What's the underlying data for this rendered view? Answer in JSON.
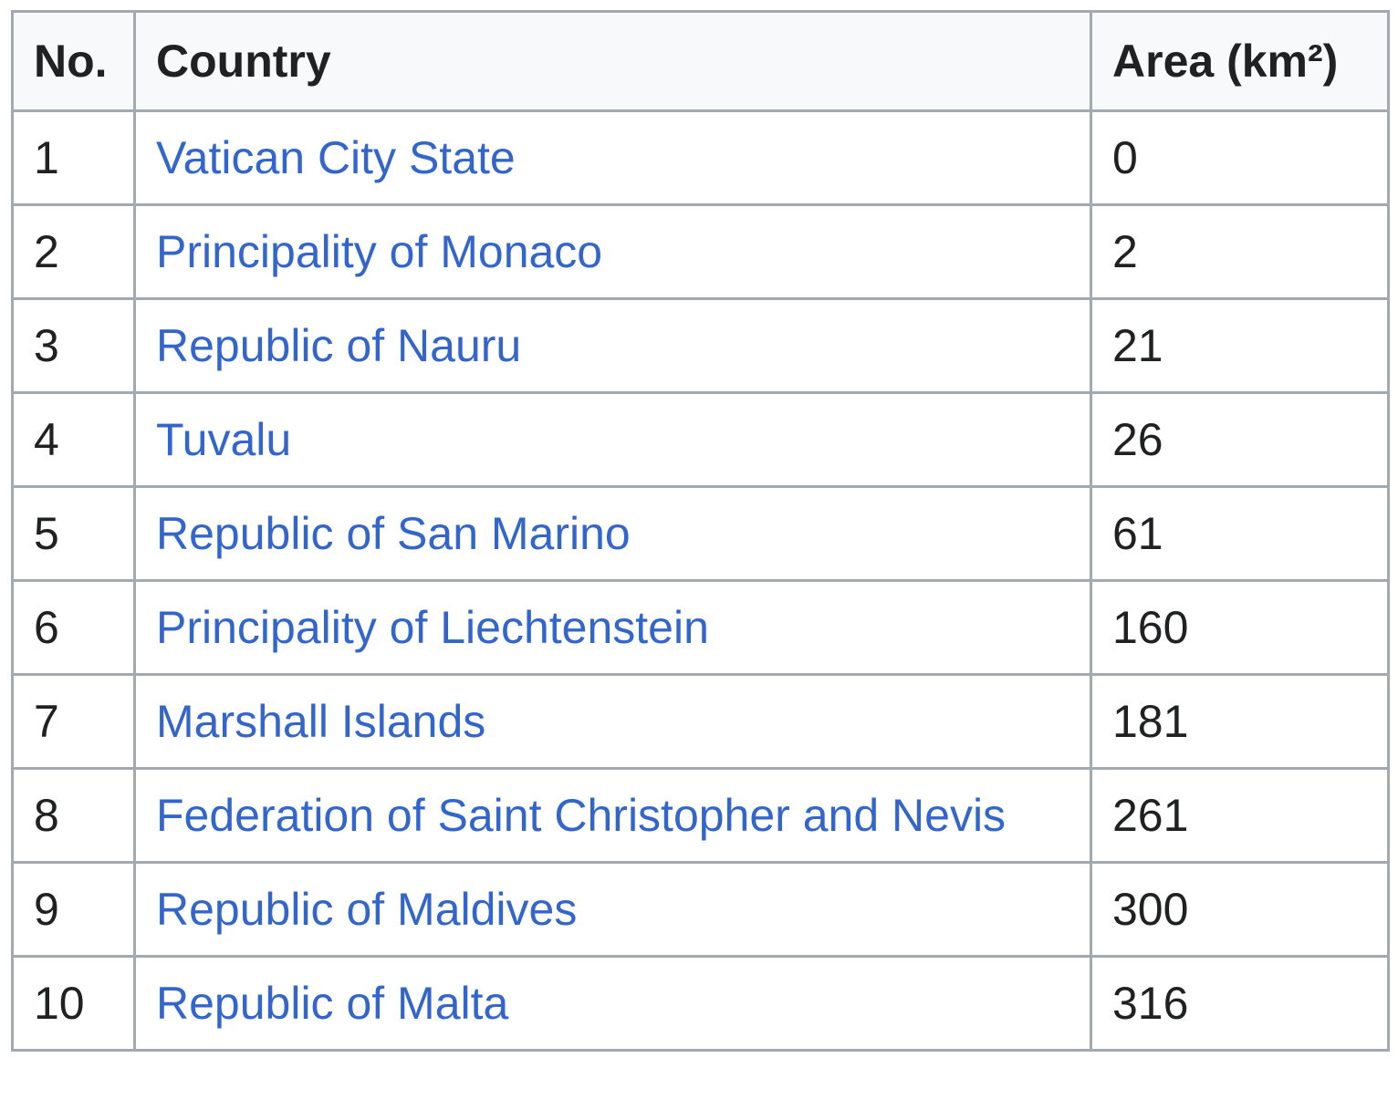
{
  "table": {
    "headers": {
      "no": "No.",
      "country": "Country",
      "area": "Area (km²)"
    },
    "rows": [
      {
        "no": "1",
        "country": "Vatican City State",
        "area": "0"
      },
      {
        "no": "2",
        "country": "Principality of Monaco",
        "area": "2"
      },
      {
        "no": "3",
        "country": "Republic of Nauru",
        "area": "21"
      },
      {
        "no": "4",
        "country": "Tuvalu",
        "area": "26"
      },
      {
        "no": "5",
        "country": "Republic of San Marino",
        "area": "61"
      },
      {
        "no": "6",
        "country": "Principality of Liechtenstein",
        "area": "160"
      },
      {
        "no": "7",
        "country": "Marshall Islands",
        "area": "181"
      },
      {
        "no": "8",
        "country": "Federation of Saint Christopher and Nevis",
        "area": "261"
      },
      {
        "no": "9",
        "country": "Republic of Maldives",
        "area": "300"
      },
      {
        "no": "10",
        "country": "Republic of Malta",
        "area": "316"
      }
    ]
  },
  "colors": {
    "link": "#3366cc",
    "text": "#202122",
    "border": "#a2a9b1",
    "header_bg": "#f8f9fa"
  }
}
